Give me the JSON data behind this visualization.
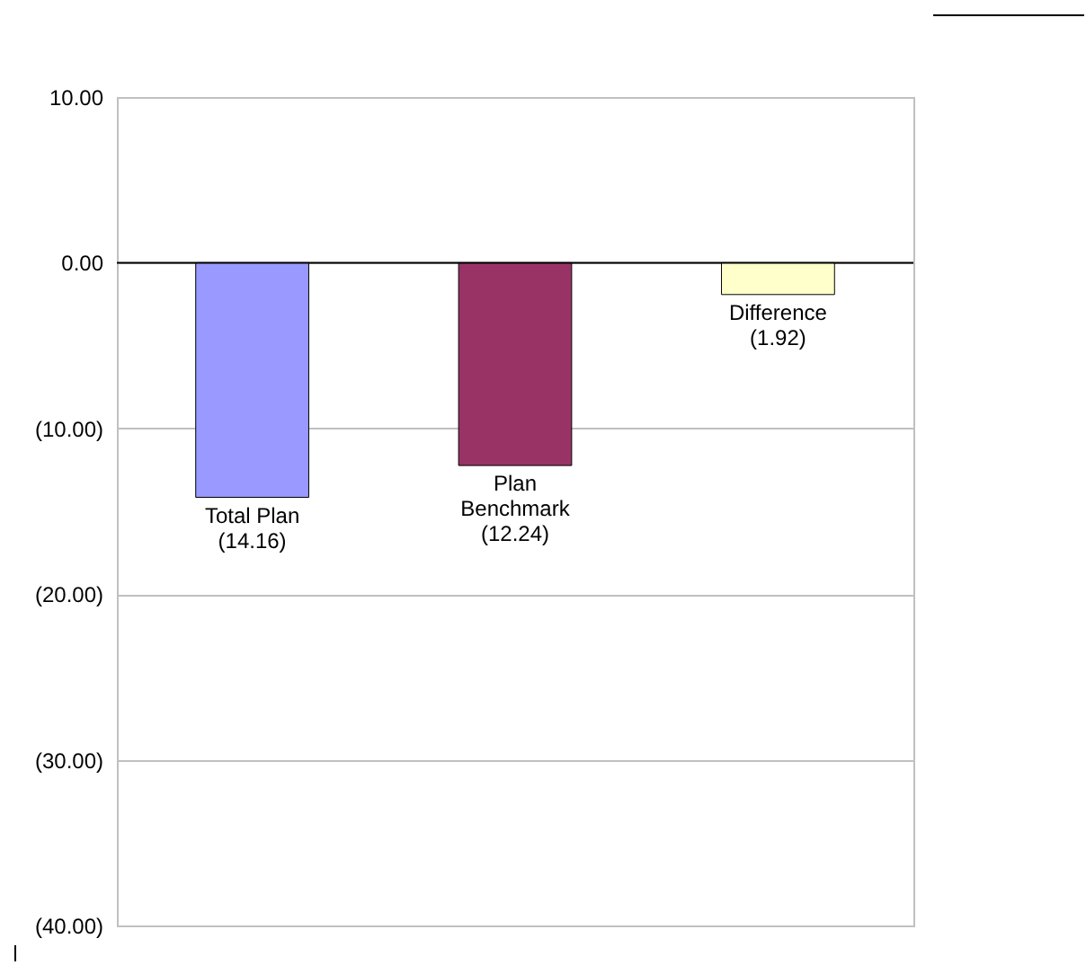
{
  "chart_data": {
    "type": "bar",
    "categories": [
      "Total Plan",
      "Plan Benchmark",
      "Difference"
    ],
    "values": [
      -14.16,
      -12.24,
      -1.92
    ],
    "colors": [
      "#9999ff",
      "#993366",
      "#ffffcc"
    ],
    "value_labels": [
      "(14.16)",
      "(12.24)",
      "(1.92)"
    ],
    "ylim": [
      -40,
      10
    ],
    "yticks": [
      {
        "value": 10,
        "label": "10.00"
      },
      {
        "value": 0,
        "label": "0.00"
      },
      {
        "value": -10,
        "label": "(10.00)"
      },
      {
        "value": -20,
        "label": "(20.00)"
      },
      {
        "value": -30,
        "label": "(30.00)"
      },
      {
        "value": -40,
        "label": "(40.00)"
      }
    ],
    "grid": "y",
    "tick_labels": "y"
  }
}
